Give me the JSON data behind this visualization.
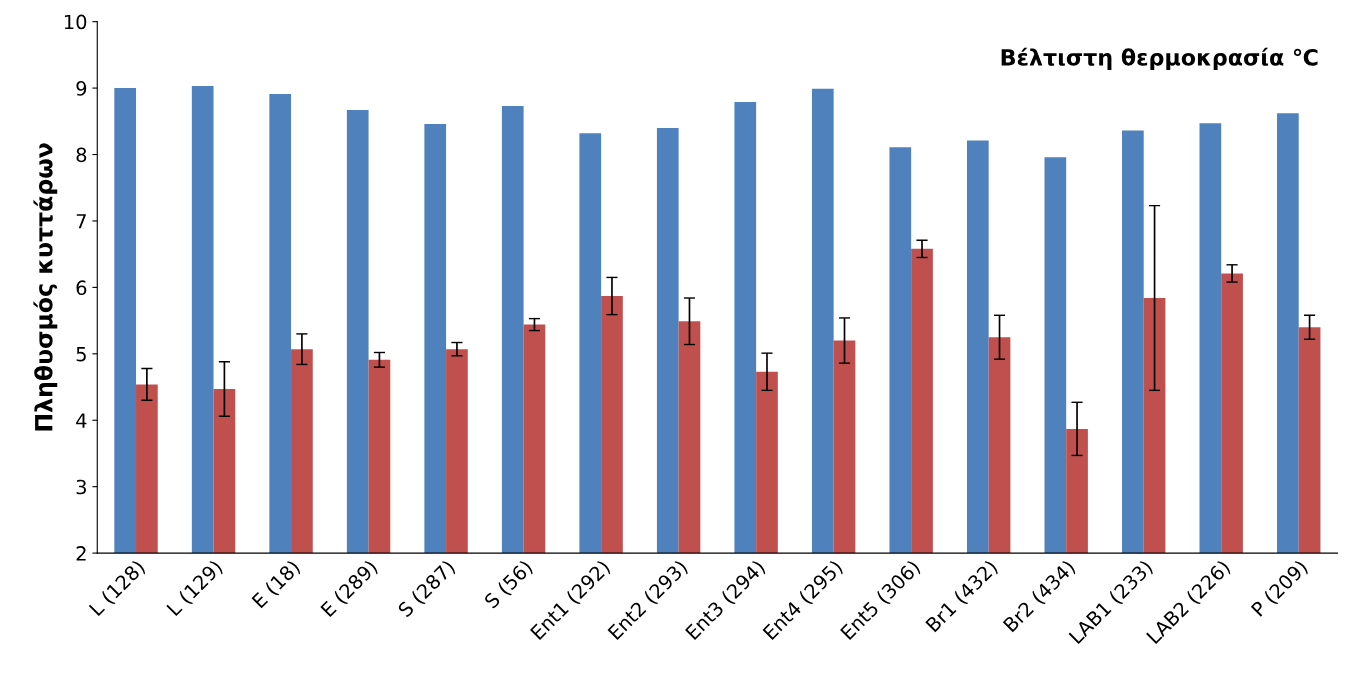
{
  "chart_data": {
    "type": "bar",
    "title": "Βέλτιστη θερμοκρασία ℃",
    "ylabel": "Πληθυσμός κυττάρων",
    "categories": [
      "L (128)",
      "L (129)",
      "E (18)",
      "E (289)",
      "S (287)",
      "S (56)",
      "Ent1 (292)",
      "Ent2 (293)",
      "Ent3 (294)",
      "Ent4 (295)",
      "Ent5 (306)",
      "Br1 (432)",
      "Br2 (434)",
      "LAB1 (233)",
      "LAB2 (226)",
      "P (209)"
    ],
    "series": [
      {
        "color": "#4f81bd",
        "values": [
          9.0,
          9.03,
          8.91,
          8.67,
          8.46,
          8.73,
          8.32,
          8.4,
          8.79,
          8.99,
          8.11,
          8.21,
          7.96,
          8.36,
          8.47,
          8.62
        ]
      },
      {
        "color": "#c0504d",
        "values": [
          4.54,
          4.47,
          5.07,
          4.91,
          5.07,
          5.44,
          5.87,
          5.49,
          4.73,
          5.2,
          6.58,
          5.25,
          3.87,
          5.84,
          6.21,
          5.4
        ],
        "errors": [
          0.24,
          0.41,
          0.23,
          0.11,
          0.1,
          0.09,
          0.28,
          0.35,
          0.28,
          0.34,
          0.13,
          0.33,
          0.4,
          1.39,
          0.13,
          0.18
        ]
      }
    ],
    "ylim": [
      2,
      10
    ],
    "yticks": [
      2,
      3,
      4,
      5,
      6,
      7,
      8,
      9,
      10
    ],
    "grid": false,
    "legend": false
  }
}
